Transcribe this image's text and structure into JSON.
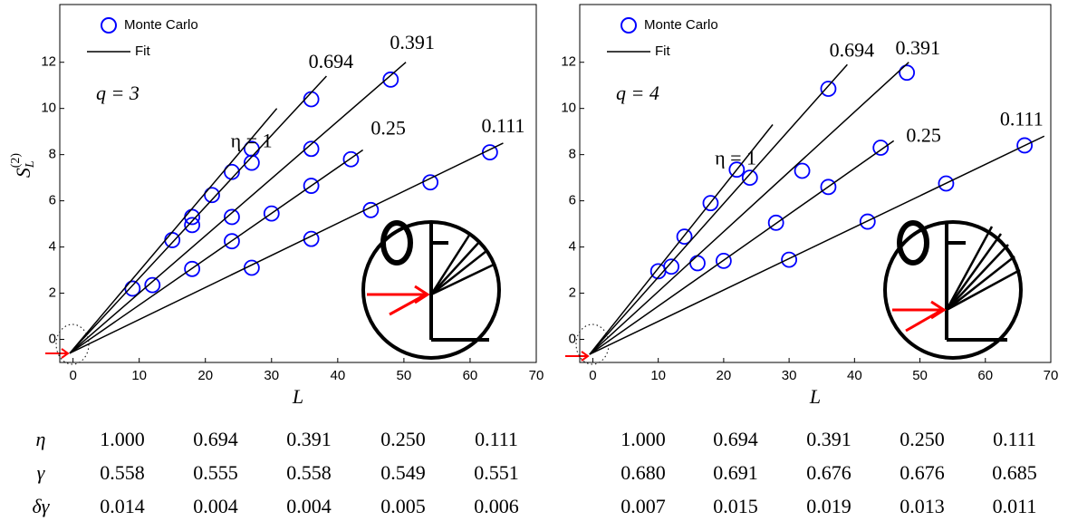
{
  "chart_data": [
    {
      "type": "scatter",
      "x_label": "L",
      "y_label": "S",
      "y_label_sub": "L",
      "y_label_sup": "(2)",
      "annotation": "q = 3",
      "xlim": [
        -2,
        70
      ],
      "ylim": [
        -1,
        14.5
      ],
      "xticks": [
        0,
        10,
        20,
        30,
        40,
        50,
        60,
        70
      ],
      "yticks": [
        0,
        2,
        4,
        6,
        8,
        10,
        12
      ],
      "series": [
        {
          "name": "Monte Carlo",
          "color": "#0000ff",
          "marker": "circle",
          "x": [
            9,
            12,
            15,
            18,
            18,
            18,
            21,
            24,
            24,
            24,
            27,
            27,
            27,
            30,
            36,
            36,
            36,
            36,
            42,
            45,
            48,
            54,
            63
          ],
          "y": [
            2.2,
            2.35,
            4.3,
            5.3,
            4.95,
            3.05,
            6.25,
            7.25,
            5.3,
            4.25,
            8.25,
            7.65,
            3.1,
            5.45,
            10.4,
            8.25,
            6.65,
            4.35,
            7.8,
            5.6,
            11.25,
            6.8,
            8.1
          ]
        },
        {
          "name": "Fit",
          "color": "#000000",
          "marker": "line",
          "lines": [
            {
              "label": "η = 1",
              "x": [
                -0.5,
                30.8
              ],
              "y": [
                -0.6,
                10.0
              ]
            },
            {
              "label": "0.694",
              "x": [
                -0.5,
                38.3
              ],
              "y": [
                -0.6,
                11.4
              ]
            },
            {
              "label": "0.391",
              "x": [
                -0.5,
                50.3
              ],
              "y": [
                -0.6,
                12.0
              ]
            },
            {
              "label": "0.25",
              "x": [
                -0.5,
                43.8
              ],
              "y": [
                -0.6,
                8.2
              ]
            },
            {
              "label": "0.111",
              "x": [
                -0.5,
                65.0
              ],
              "y": [
                -0.6,
                8.5
              ]
            }
          ]
        }
      ]
    },
    {
      "type": "scatter",
      "x_label": "L",
      "annotation": "q = 4",
      "xlim": [
        -2,
        70
      ],
      "ylim": [
        -1,
        14.5
      ],
      "xticks": [
        0,
        10,
        20,
        30,
        40,
        50,
        60,
        70
      ],
      "yticks": [
        0,
        2,
        4,
        6,
        8,
        10,
        12
      ],
      "series": [
        {
          "name": "Monte Carlo",
          "color": "#0000ff",
          "marker": "circle",
          "x": [
            10,
            12,
            14,
            16,
            18,
            20,
            22,
            24,
            28,
            30,
            32,
            36,
            36,
            42,
            44,
            48,
            54,
            66
          ],
          "y": [
            2.95,
            3.15,
            4.45,
            3.3,
            5.9,
            3.4,
            7.35,
            7.0,
            5.05,
            3.45,
            7.3,
            10.85,
            6.6,
            5.1,
            8.3,
            11.55,
            6.75,
            8.4
          ]
        },
        {
          "name": "Fit",
          "color": "#000000",
          "marker": "line",
          "lines": [
            {
              "label": "η = 1",
              "x": [
                -0.5,
                27.5
              ],
              "y": [
                -0.65,
                9.3
              ]
            },
            {
              "label": "0.694",
              "x": [
                -0.5,
                38.9
              ],
              "y": [
                -0.65,
                11.9
              ]
            },
            {
              "label": "0.391",
              "x": [
                -0.5,
                48.3
              ],
              "y": [
                -0.65,
                12.0
              ]
            },
            {
              "label": "0.25",
              "x": [
                -0.5,
                46.0
              ],
              "y": [
                -0.65,
                8.6
              ]
            },
            {
              "label": "0.111",
              "x": [
                -0.5,
                69.0
              ],
              "y": [
                -0.65,
                8.8
              ]
            }
          ]
        }
      ]
    }
  ],
  "table": {
    "rows": [
      {
        "label": "η",
        "values": [
          "1.000",
          "0.694",
          "0.391",
          "0.250",
          "0.111",
          "1.000",
          "0.694",
          "0.391",
          "0.250",
          "0.111"
        ]
      },
      {
        "label": "γ",
        "values": [
          "0.558",
          "0.555",
          "0.558",
          "0.549",
          "0.551",
          "0.680",
          "0.691",
          "0.676",
          "0.676",
          "0.685"
        ]
      },
      {
        "label": "δγ",
        "values": [
          "0.014",
          "0.004",
          "0.004",
          "0.005",
          "0.006",
          "0.007",
          "0.015",
          "0.019",
          "0.013",
          "0.011"
        ]
      }
    ]
  }
}
